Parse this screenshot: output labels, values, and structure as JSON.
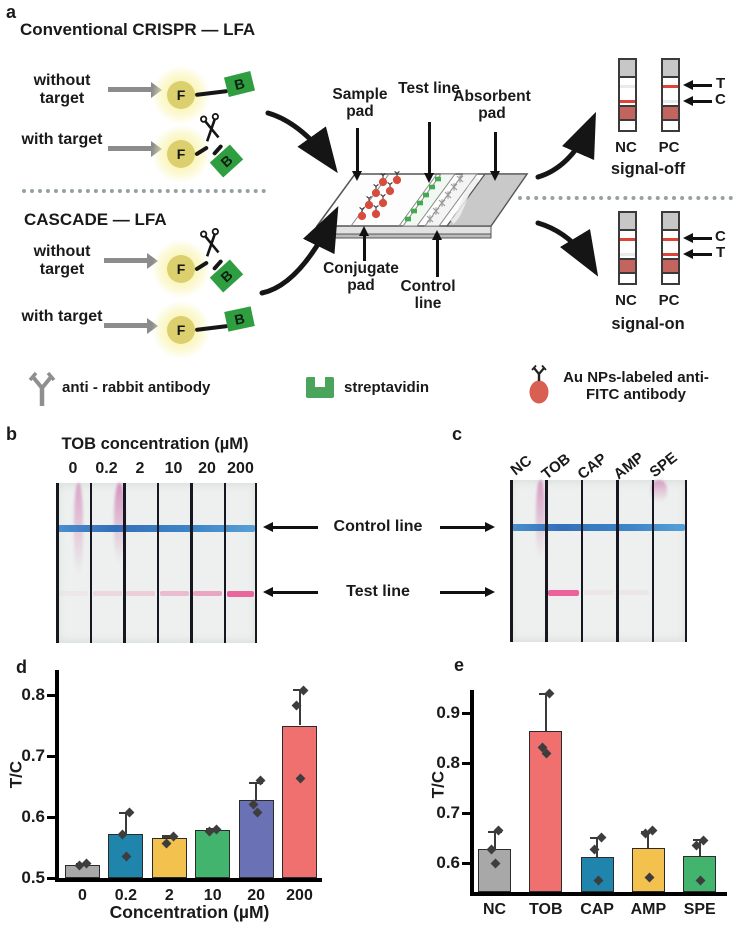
{
  "figure_labels": {
    "a": "a",
    "b": "b",
    "c": "c",
    "d": "d",
    "e": "e"
  },
  "panel_a": {
    "conventional_title": "Conventional CRISPR — LFA",
    "cascade_title": "CASCADE — LFA",
    "without_target": "without target",
    "with_target": "with target",
    "reporter": {
      "f": "F",
      "b": "B"
    },
    "strip_labels": {
      "sample_pad": "Sample pad",
      "test_line": "Test line",
      "absorbent_pad": "Absorbent pad",
      "conjugate_pad": "Conjugate pad",
      "control_line": "Control line"
    },
    "signal_off": {
      "caption": "signal-off",
      "left_strip": "NC",
      "right_strip": "PC",
      "arrow_top": "T",
      "arrow_bottom": "C"
    },
    "signal_on": {
      "caption": "signal-on",
      "left_strip": "NC",
      "right_strip": "PC",
      "arrow_top": "C",
      "arrow_bottom": "T"
    },
    "legend": {
      "antibody": "anti - rabbit antibody",
      "streptavidin": "streptavidin",
      "aunp": "Au NPs-labeled anti-FITC antibody"
    }
  },
  "panel_b": {
    "title": "TOB concentration (µM)",
    "concentrations": [
      "0",
      "0.2",
      "2",
      "10",
      "20",
      "200"
    ],
    "control_line_label": "Control line",
    "test_line_label": "Test line"
  },
  "panel_c": {
    "samples": [
      "NC",
      "TOB",
      "CAP",
      "AMP",
      "SPE"
    ]
  },
  "chart_data": [
    {
      "id": "d",
      "type": "bar",
      "title": "",
      "categories": [
        "0",
        "0.2",
        "2",
        "10",
        "20",
        "200"
      ],
      "values": [
        0.521,
        0.572,
        0.565,
        0.578,
        0.628,
        0.75
      ],
      "errors_upper": [
        0.004,
        0.036,
        0.005,
        0.004,
        0.03,
        0.06
      ],
      "points": [
        [
          0.523,
          0.52
        ],
        [
          0.608,
          0.572,
          0.535
        ],
        [
          0.568,
          0.556
        ],
        [
          0.58,
          0.576
        ],
        [
          0.66,
          0.62,
          0.607
        ],
        [
          0.808,
          0.782,
          0.663
        ]
      ],
      "bar_colors": [
        "#a8a8a8",
        "#1f85ad",
        "#f2c14e",
        "#42b46d",
        "#6a71b5",
        "#f07070"
      ],
      "xlabel": "Concentration (µM)",
      "ylabel": "T/C",
      "yticks": [
        0.5,
        0.6,
        0.7,
        0.8
      ],
      "ylim": [
        0.5,
        0.84
      ],
      "grid": false,
      "legend_position": "none"
    },
    {
      "id": "e",
      "type": "bar",
      "title": "",
      "categories": [
        "NC",
        "TOB",
        "CAP",
        "AMP",
        "SPE"
      ],
      "values": [
        0.628,
        0.865,
        0.613,
        0.63,
        0.615
      ],
      "errors_upper": [
        0.037,
        0.075,
        0.04,
        0.035,
        0.033
      ],
      "points": [
        [
          0.665,
          0.627,
          0.6
        ],
        [
          0.94,
          0.832,
          0.82
        ],
        [
          0.652,
          0.627,
          0.565
        ],
        [
          0.665,
          0.66,
          0.572
        ],
        [
          0.646,
          0.636,
          0.565
        ]
      ],
      "bar_colors": [
        "#a8a8a8",
        "#f07070",
        "#1f85ad",
        "#f2c14e",
        "#42b46d"
      ],
      "xlabel": "",
      "ylabel": "T/C",
      "yticks": [
        0.6,
        0.7,
        0.8,
        0.9
      ],
      "ylim": [
        0.545,
        0.96
      ],
      "grid": false,
      "legend_position": "none"
    }
  ],
  "colors": {
    "control_line_blue": "#3e86c8",
    "test_line_pink": "#e8679d",
    "reporter_f_yellow": "#dbcf6e",
    "reporter_b_green": "#2e9e41",
    "au_np_red": "#d85f52",
    "streptavidin_green": "#4aa45c",
    "result_line_red": "#dc4437",
    "arrow_gray": "#8c8c8c"
  }
}
